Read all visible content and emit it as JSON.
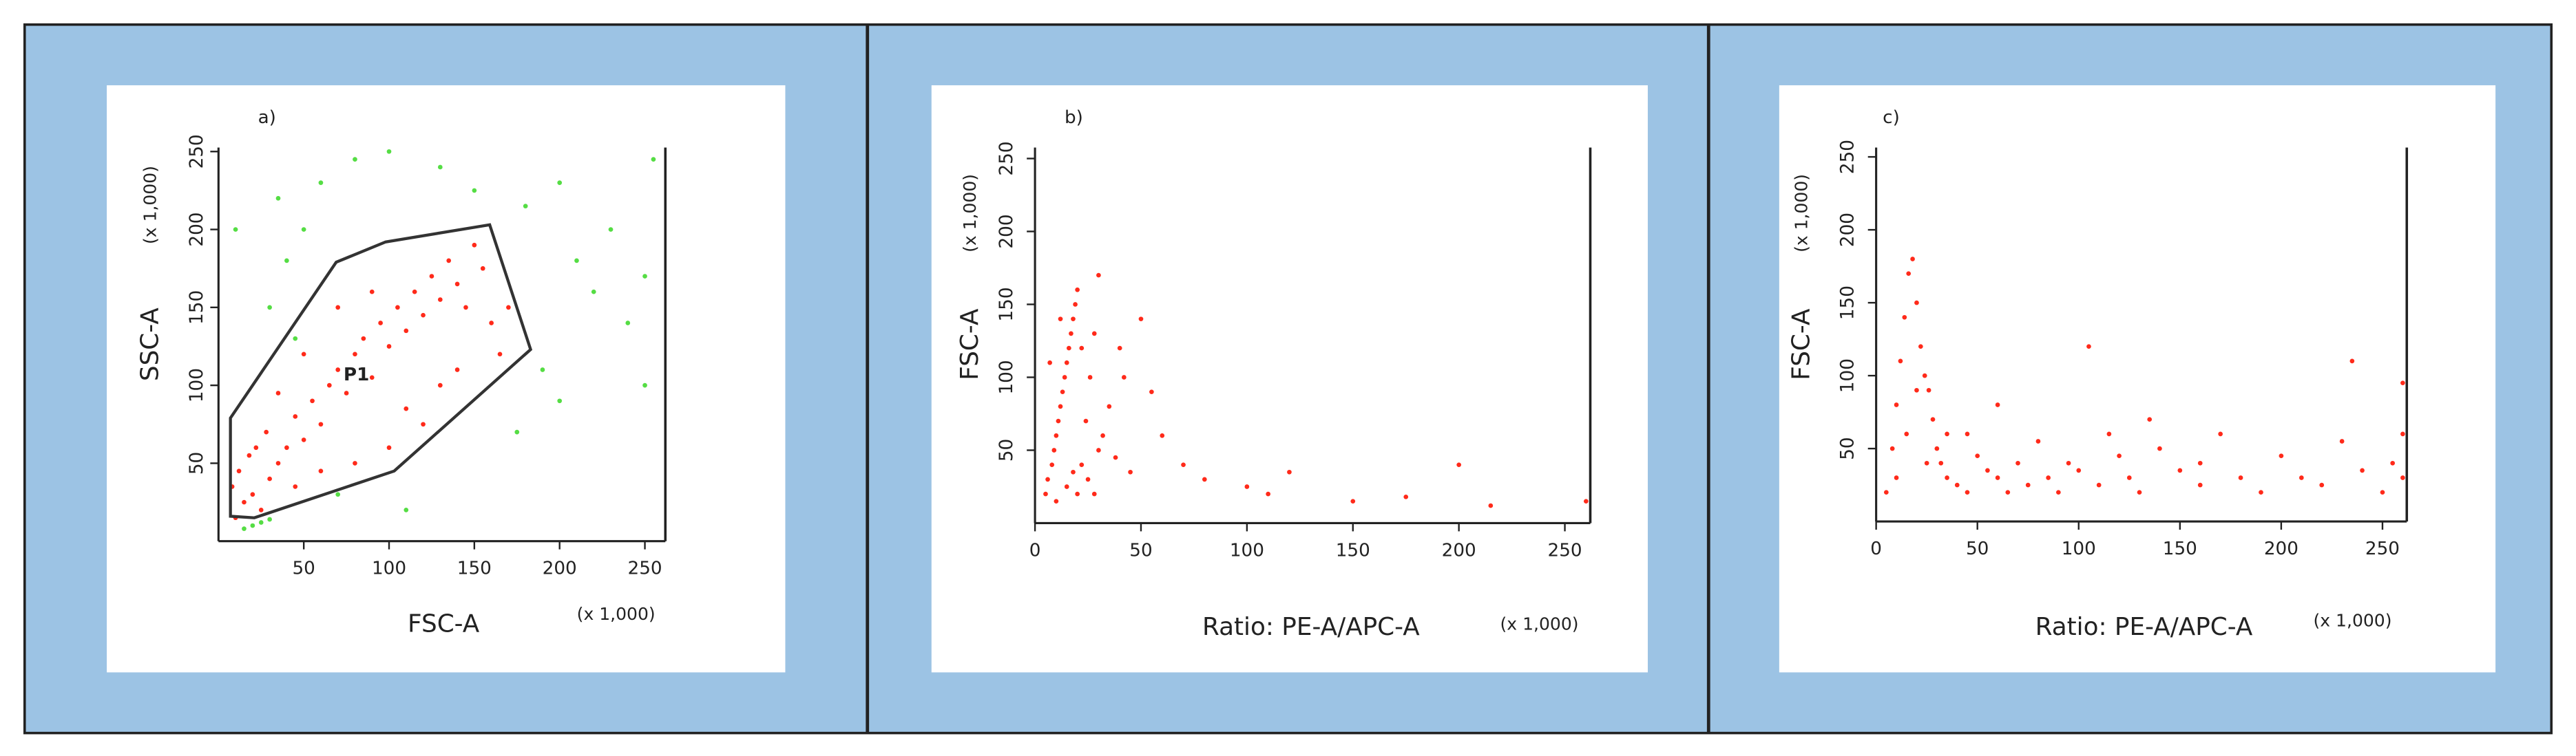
{
  "chart_data": [
    {
      "type": "scatter",
      "panel_label": "a)",
      "xlabel": "FSC-A",
      "ylabel": "SSC-A",
      "xunit": "(x 1,000)",
      "yunit": "(x 1,000)",
      "xlim": [
        0,
        262
      ],
      "ylim": [
        0,
        262
      ],
      "xticks": [
        50,
        100,
        150,
        200,
        250
      ],
      "yticks": [
        50,
        100,
        150,
        200,
        250
      ],
      "gate": {
        "label": "P1",
        "x": [
          7,
          69,
          98,
          159,
          183,
          103,
          21,
          7
        ],
        "y": [
          79,
          179,
          192,
          203,
          123,
          45,
          15,
          16
        ]
      },
      "series": [
        {
          "color": "#ff2a1a",
          "x": [
            10,
            15,
            20,
            25,
            30,
            12,
            18,
            35,
            40,
            28,
            45,
            50,
            55,
            60,
            65,
            70,
            75,
            80,
            85,
            90,
            95,
            100,
            105,
            110,
            115,
            120,
            125,
            130,
            135,
            140,
            145,
            150,
            155,
            160,
            165,
            170,
            110,
            130,
            90,
            70,
            50,
            35,
            22,
            8,
            140,
            120,
            100,
            80,
            60,
            45
          ],
          "values": [
            15,
            25,
            30,
            20,
            40,
            45,
            55,
            50,
            60,
            70,
            80,
            65,
            90,
            75,
            100,
            110,
            95,
            120,
            130,
            105,
            140,
            125,
            150,
            135,
            160,
            145,
            170,
            155,
            180,
            165,
            150,
            190,
            175,
            140,
            120,
            150,
            85,
            100,
            160,
            150,
            120,
            95,
            60,
            35,
            110,
            75,
            60,
            50,
            45,
            35
          ]
        },
        {
          "color": "#55dd44",
          "x": [
            20,
            25,
            15,
            30,
            40,
            50,
            60,
            80,
            100,
            130,
            150,
            180,
            200,
            210,
            220,
            230,
            240,
            250,
            255,
            190,
            200,
            175,
            30,
            45,
            10,
            35,
            250,
            70,
            110
          ],
          "values": [
            10,
            12,
            8,
            14,
            180,
            200,
            230,
            245,
            250,
            240,
            225,
            215,
            230,
            180,
            160,
            200,
            140,
            170,
            245,
            110,
            90,
            70,
            150,
            130,
            200,
            220,
            100,
            30,
            20
          ]
        }
      ]
    },
    {
      "type": "scatter",
      "panel_label": "b)",
      "xlabel": "Ratio: PE-A/APC-A",
      "ylabel": "FSC-A",
      "xunit": "(x 1,000)",
      "yunit": "(x 1,000)",
      "xlim": [
        0,
        262
      ],
      "ylim": [
        0,
        262
      ],
      "xticks": [
        0,
        50,
        100,
        150,
        200,
        250
      ],
      "yticks": [
        50,
        100,
        150,
        200,
        250
      ],
      "series": [
        {
          "color": "#ff2a1a",
          "x": [
            5,
            8,
            10,
            12,
            14,
            16,
            18,
            20,
            6,
            9,
            11,
            13,
            15,
            17,
            19,
            22,
            24,
            26,
            28,
            30,
            25,
            20,
            15,
            10,
            30,
            35,
            32,
            38,
            45,
            42,
            28,
            18,
            12,
            7,
            22,
            40,
            50,
            55,
            60,
            70,
            80,
            100,
            110,
            120,
            150,
            175,
            200,
            215,
            260
          ],
          "values": [
            20,
            40,
            60,
            80,
            100,
            120,
            140,
            160,
            30,
            50,
            70,
            90,
            110,
            130,
            150,
            40,
            70,
            100,
            130,
            170,
            30,
            20,
            25,
            15,
            50,
            80,
            60,
            45,
            35,
            100,
            20,
            35,
            140,
            110,
            120,
            120,
            140,
            90,
            60,
            40,
            30,
            25,
            20,
            35,
            15,
            18,
            40,
            12,
            15
          ]
        }
      ]
    },
    {
      "type": "scatter",
      "panel_label": "c)",
      "xlabel": "Ratio: PE-A/APC-A",
      "ylabel": "FSC-A",
      "xunit": "(x 1,000)",
      "yunit": "(x 1,000)",
      "xlim": [
        0,
        262
      ],
      "ylim": [
        0,
        262
      ],
      "xticks": [
        0,
        50,
        100,
        150,
        200,
        250
      ],
      "yticks": [
        50,
        100,
        150,
        200,
        250
      ],
      "series": [
        {
          "color": "#ff2a1a",
          "x": [
            5,
            8,
            10,
            12,
            14,
            16,
            18,
            20,
            22,
            24,
            26,
            28,
            30,
            32,
            35,
            40,
            45,
            50,
            55,
            60,
            65,
            70,
            75,
            80,
            85,
            90,
            95,
            100,
            105,
            110,
            120,
            125,
            130,
            140,
            150,
            160,
            170,
            180,
            190,
            200,
            210,
            220,
            230,
            235,
            240,
            250,
            255,
            260,
            260,
            260,
            15,
            20,
            10,
            25,
            35,
            45,
            60,
            115,
            135,
            160
          ],
          "values": [
            20,
            50,
            80,
            110,
            140,
            170,
            180,
            150,
            120,
            100,
            90,
            70,
            50,
            40,
            30,
            25,
            60,
            45,
            35,
            30,
            20,
            40,
            25,
            55,
            30,
            20,
            40,
            35,
            120,
            25,
            45,
            30,
            20,
            50,
            35,
            25,
            60,
            30,
            20,
            45,
            30,
            25,
            55,
            110,
            35,
            20,
            40,
            95,
            60,
            30,
            60,
            90,
            30,
            40,
            60,
            20,
            80,
            60,
            70,
            40
          ]
        }
      ]
    }
  ]
}
